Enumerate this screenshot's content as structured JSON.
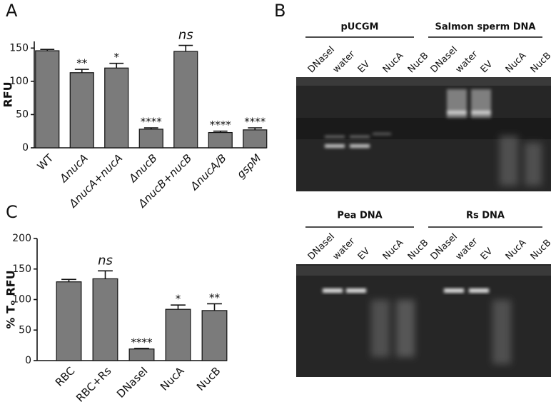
{
  "chart_data": [
    {
      "type": "bar",
      "panel": "A",
      "ylabel": "RFU",
      "categories": [
        "WT",
        "ΔnucA",
        "ΔnucA+nucA",
        "ΔnucB",
        "ΔnucB+nucB",
        "ΔnucA/B",
        "gspM"
      ],
      "values": [
        146,
        113,
        120,
        28,
        145,
        23,
        27
      ],
      "errors": [
        2,
        5,
        7,
        2,
        9,
        2,
        3
      ],
      "annotations": [
        null,
        "**",
        "*",
        "****",
        "ns",
        "****",
        "****"
      ],
      "color": "#7b7b7b",
      "ylim": [
        0,
        160
      ],
      "yticks": [
        0,
        50,
        100,
        150
      ]
    },
    {
      "type": "bar",
      "panel": "C",
      "ylabel": "% Tₒ RFU",
      "categories": [
        "RBC",
        "RBC+Rs",
        "DNaseI",
        "NucA",
        "NucB"
      ],
      "values": [
        129,
        134,
        19,
        84,
        82
      ],
      "errors": [
        4,
        13,
        1,
        7,
        11
      ],
      "annotations": [
        null,
        "ns",
        "****",
        "*",
        "**"
      ],
      "color": "#7b7b7b",
      "ylim": [
        0,
        200
      ],
      "yticks": [
        0,
        50,
        100,
        150,
        200
      ]
    }
  ],
  "panel_b": "B",
  "gels": [
    {
      "groups": [
        {
          "title": "pUCGM",
          "lanes": [
            "DNaseI",
            "water",
            "EV",
            "NucA",
            "NucB"
          ]
        },
        {
          "title": "Salmon sperm DNA",
          "lanes": [
            "DNaseI",
            "water",
            "EV",
            "NucA",
            "NucB"
          ]
        }
      ]
    },
    {
      "groups": [
        {
          "title": "Pea DNA",
          "lanes": [
            "DNaseI",
            "water",
            "EV",
            "NucA",
            "NucB"
          ]
        },
        {
          "title": "Rs DNA",
          "lanes": [
            "DNaseI",
            "water",
            "EV",
            "NucA",
            "NucB"
          ]
        }
      ]
    }
  ]
}
